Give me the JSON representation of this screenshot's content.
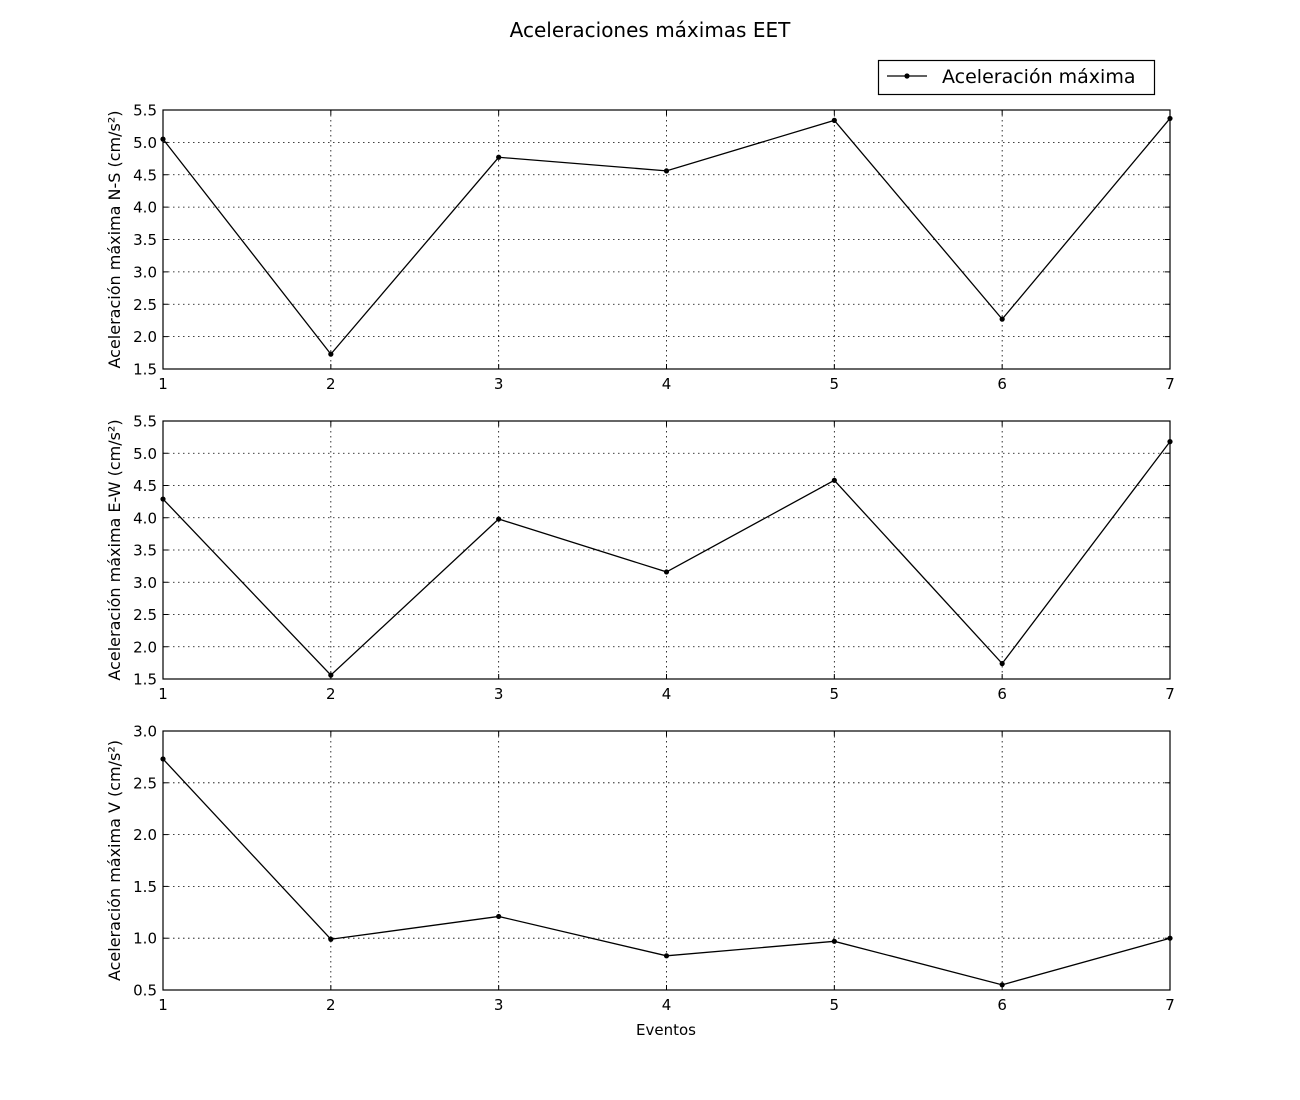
{
  "figure": {
    "title": "Aceleraciones máximas EET",
    "legend": {
      "label": "Aceleración máxima",
      "placement": "upper-right"
    },
    "xlabel": "Eventos"
  },
  "chart_data": [
    {
      "type": "line",
      "title": "",
      "xlabel": "",
      "ylabel": "Aceleración máxima N-S (cm/s²)",
      "x": [
        1,
        2,
        3,
        4,
        5,
        6,
        7
      ],
      "xlim": [
        1,
        7
      ],
      "ylim": [
        1.5,
        5.5
      ],
      "xticks": [
        "1",
        "2",
        "3",
        "4",
        "5",
        "6",
        "7"
      ],
      "yticks": [
        "1.5",
        "2.0",
        "2.5",
        "3.0",
        "3.5",
        "4.0",
        "4.5",
        "5.0",
        "5.5"
      ],
      "grid": true,
      "series": [
        {
          "name": "Aceleración máxima",
          "values": [
            5.05,
            1.73,
            4.77,
            4.56,
            5.34,
            2.27,
            5.37
          ]
        }
      ]
    },
    {
      "type": "line",
      "title": "",
      "xlabel": "",
      "ylabel": "Aceleración máxima E-W (cm/s²)",
      "x": [
        1,
        2,
        3,
        4,
        5,
        6,
        7
      ],
      "xlim": [
        1,
        7
      ],
      "ylim": [
        1.5,
        5.5
      ],
      "xticks": [
        "1",
        "2",
        "3",
        "4",
        "5",
        "6",
        "7"
      ],
      "yticks": [
        "1.5",
        "2.0",
        "2.5",
        "3.0",
        "3.5",
        "4.0",
        "4.5",
        "5.0",
        "5.5"
      ],
      "grid": true,
      "series": [
        {
          "values": [
            4.29,
            1.56,
            3.98,
            3.16,
            4.58,
            1.74,
            5.18
          ]
        }
      ]
    },
    {
      "type": "line",
      "title": "",
      "xlabel": "Eventos",
      "ylabel": "Aceleración máxima V (cm/s²)",
      "x": [
        1,
        2,
        3,
        4,
        5,
        6,
        7
      ],
      "xlim": [
        1,
        7
      ],
      "ylim": [
        0.5,
        3.0
      ],
      "xticks": [
        "1",
        "2",
        "3",
        "4",
        "5",
        "6",
        "7"
      ],
      "yticks": [
        "0.5",
        "1.0",
        "1.5",
        "2.0",
        "2.5",
        "3.0"
      ],
      "grid": true,
      "series": [
        {
          "values": [
            2.73,
            0.99,
            1.21,
            0.83,
            0.97,
            0.55,
            1.0
          ]
        }
      ]
    }
  ]
}
